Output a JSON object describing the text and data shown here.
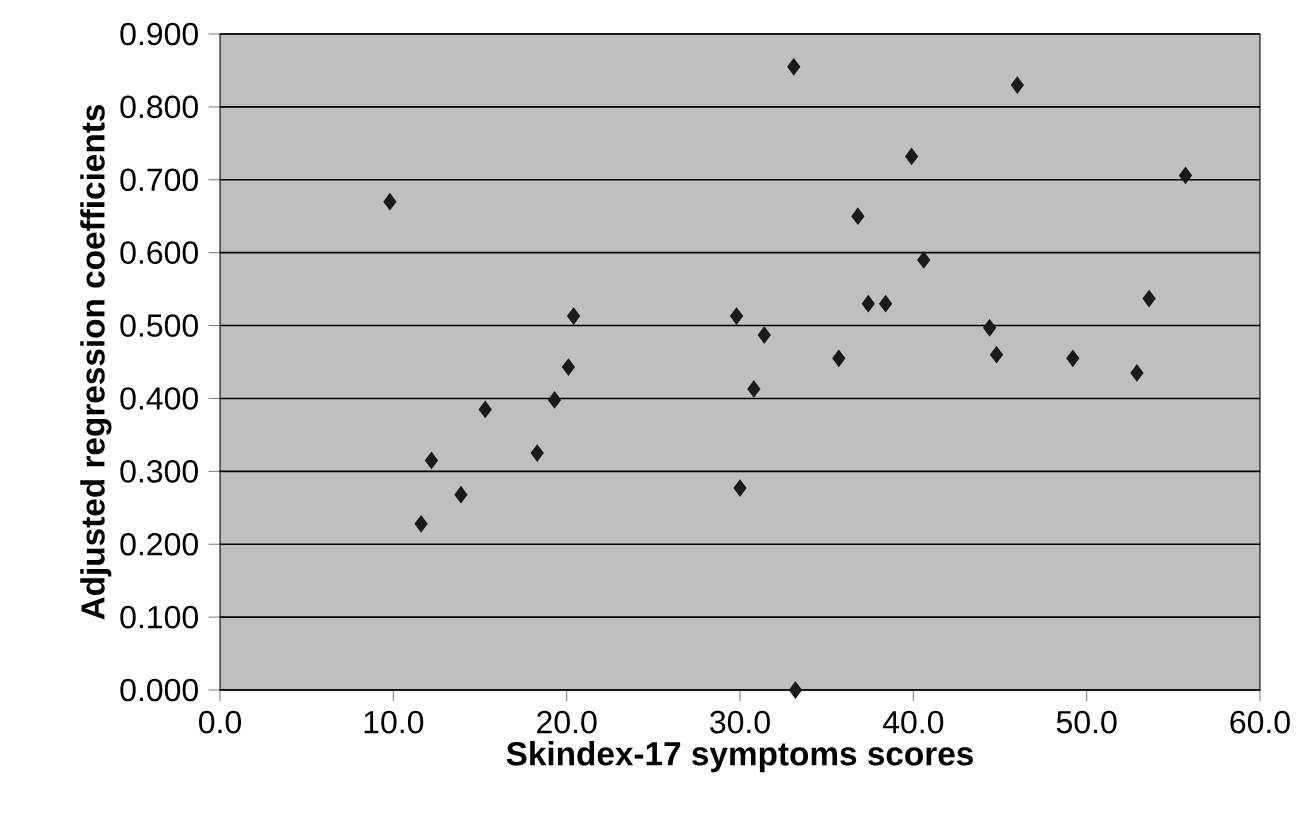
{
  "chart_data": {
    "type": "scatter",
    "xlabel": "Skindex-17 symptoms scores",
    "ylabel": "Adjusted regression coefficients",
    "x": [
      9.8,
      11.6,
      12.2,
      13.9,
      15.3,
      18.3,
      19.3,
      20.1,
      20.4,
      29.8,
      30.0,
      30.8,
      31.4,
      33.1,
      33.2,
      35.7,
      36.8,
      37.4,
      38.4,
      39.9,
      40.6,
      44.4,
      44.8,
      46.0,
      49.2,
      52.9,
      53.6,
      55.7
    ],
    "values": [
      0.67,
      0.228,
      0.315,
      0.268,
      0.385,
      0.325,
      0.398,
      0.443,
      0.513,
      0.513,
      0.277,
      0.413,
      0.487,
      0.855,
      0.0,
      0.455,
      0.65,
      0.53,
      0.53,
      0.732,
      0.59,
      0.497,
      0.46,
      0.83,
      0.455,
      0.435,
      0.537,
      0.706
    ],
    "color": "#1a1a1a",
    "marker": "diamond",
    "grid": "y",
    "xlim": [
      0,
      60
    ],
    "xticks": [
      {
        "value": 0,
        "label": "0.0"
      },
      {
        "value": 10,
        "label": "10.0"
      },
      {
        "value": 20,
        "label": "20.0"
      },
      {
        "value": 30,
        "label": "30.0"
      },
      {
        "value": 40,
        "label": "40.0"
      },
      {
        "value": 50,
        "label": "50.0"
      },
      {
        "value": 60,
        "label": "60.0"
      }
    ],
    "ylim": [
      0,
      0.9
    ],
    "yticks": [
      {
        "value": 0,
        "label": "0.000"
      },
      {
        "value": 0.1,
        "label": "0.100"
      },
      {
        "value": 0.2,
        "label": "0.200"
      },
      {
        "value": 0.3,
        "label": "0.300"
      },
      {
        "value": 0.4,
        "label": "0.400"
      },
      {
        "value": 0.5,
        "label": "0.500"
      },
      {
        "value": 0.6,
        "label": "0.600"
      },
      {
        "value": 0.7,
        "label": "0.700"
      },
      {
        "value": 0.8,
        "label": "0.800"
      },
      {
        "value": 0.9,
        "label": "0.900"
      }
    ]
  }
}
